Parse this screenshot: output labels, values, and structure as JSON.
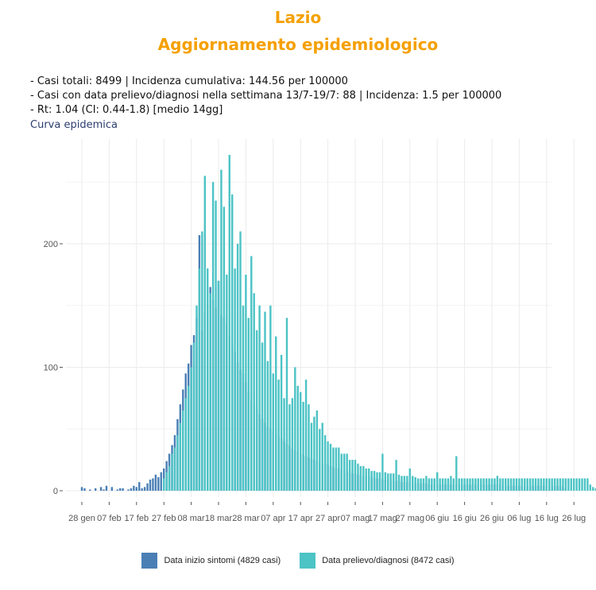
{
  "header": {
    "title": "Lazio",
    "subtitle": "Aggiornamento epidemiologico",
    "info_lines": [
      "- Casi totali: 8499 | Incidenza cumulativa: 144.56 per 100000",
      "- Casi con data prelievo/diagnosi nella settimana 13/7-19/7: 88 | Incidenza: 1.5 per 100000",
      "- Rt: 1.04 (CI: 0.44-1.8) [medio 14gg]"
    ],
    "section_label": "Curva epidemica"
  },
  "chart_data": {
    "type": "bar",
    "x_ticks": [
      "28 gen",
      "07 feb",
      "17 feb",
      "27 feb",
      "08 mar",
      "18 mar",
      "28 mar",
      "07 apr",
      "17 apr",
      "27 apr",
      "07 mag",
      "17 mag",
      "27 mag",
      "06 giu",
      "16 giu",
      "26 giu",
      "06 lug",
      "16 lug",
      "26 lug"
    ],
    "y_ticks": [
      0,
      100,
      200
    ],
    "ylim": [
      0,
      280
    ],
    "grid": true,
    "legend_position": "bottom",
    "series": [
      {
        "name": "Data inizio sintomi (4829 casi)",
        "color": "#4a7fb5",
        "start_day": 0,
        "values": [
          3,
          2,
          0,
          1,
          0,
          2,
          0,
          3,
          1,
          4,
          0,
          3,
          0,
          1,
          2,
          2,
          0,
          1,
          2,
          4,
          3,
          7,
          2,
          3,
          6,
          9,
          10,
          13,
          11,
          15,
          18,
          24,
          30,
          37,
          45,
          58,
          70,
          82,
          95,
          103,
          118,
          126,
          140,
          207,
          130,
          145,
          150,
          165,
          155,
          148,
          170,
          142,
          140,
          135,
          125,
          118,
          112,
          104,
          98,
          95,
          88,
          80,
          74,
          70,
          66,
          62,
          58,
          55,
          52,
          50,
          48,
          46,
          44,
          42,
          40,
          38,
          36,
          34,
          33,
          32,
          30,
          29,
          28,
          27,
          26,
          25,
          24,
          23,
          22,
          22,
          21,
          20,
          19,
          18,
          18,
          17,
          16,
          16,
          15,
          14,
          14,
          13,
          13,
          12,
          12,
          11,
          11,
          10,
          10,
          10,
          9,
          9,
          9,
          8,
          8,
          8,
          8,
          7,
          7,
          7,
          7,
          6,
          6,
          6,
          6,
          6,
          6,
          5,
          5,
          5,
          5,
          5,
          5,
          5,
          5,
          5,
          5,
          5,
          5,
          5,
          5,
          5,
          5,
          5,
          5,
          5,
          5,
          5,
          5,
          5,
          5,
          5,
          5,
          5,
          4,
          4,
          4,
          4,
          4,
          4,
          4,
          4,
          4,
          4,
          4,
          4,
          4,
          4,
          4,
          4,
          4,
          4,
          4,
          4,
          4,
          4,
          3,
          2
        ]
      },
      {
        "name": "Data prelievo/diagnosi (8472 casi)",
        "color": "#4cc3c5",
        "start_day": 30,
        "values": [
          10,
          15,
          20,
          30,
          35,
          45,
          55,
          65,
          75,
          85,
          100,
          120,
          150,
          180,
          210,
          255,
          180,
          160,
          250,
          235,
          170,
          260,
          230,
          175,
          272,
          240,
          180,
          200,
          210,
          150,
          175,
          140,
          190,
          160,
          130,
          150,
          120,
          145,
          105,
          150,
          95,
          125,
          90,
          110,
          75,
          140,
          70,
          75,
          100,
          85,
          80,
          72,
          90,
          70,
          55,
          60,
          65,
          50,
          55,
          45,
          40,
          38,
          35,
          35,
          35,
          30,
          30,
          30,
          25,
          25,
          25,
          22,
          20,
          20,
          18,
          18,
          16,
          16,
          15,
          15,
          30,
          15,
          14,
          14,
          14,
          25,
          13,
          12,
          12,
          12,
          18,
          12,
          11,
          10,
          10,
          10,
          12,
          10,
          10,
          10,
          15,
          10,
          10,
          10,
          10,
          12,
          10,
          28,
          10,
          10,
          10,
          10,
          10,
          10,
          10,
          10,
          10,
          10,
          10,
          10,
          10,
          10,
          12,
          10,
          10,
          10,
          10,
          10,
          10,
          10,
          10,
          10,
          10,
          10,
          10,
          10,
          10,
          10,
          10,
          10,
          10,
          10,
          10,
          10,
          10,
          10,
          10,
          10,
          10,
          10,
          10,
          10,
          10,
          10,
          10,
          10,
          5,
          3,
          2
        ]
      }
    ]
  }
}
